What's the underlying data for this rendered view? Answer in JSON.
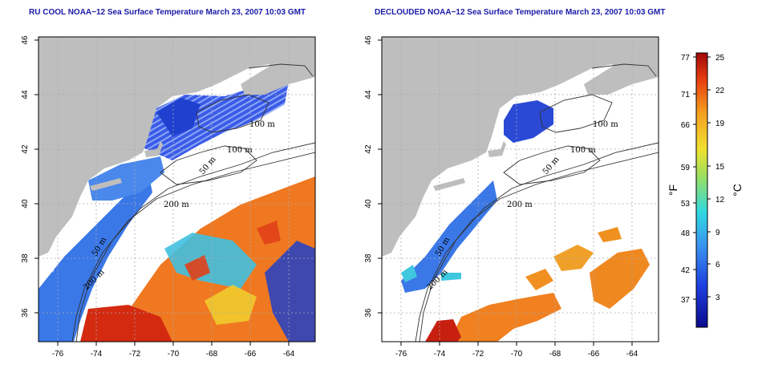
{
  "panels": [
    {
      "title": "RU COOL NOAA−12 Sea Surface Temperature March 23, 2007 10:03 GMT",
      "x_ticks": [
        "-76",
        "-74",
        "-72",
        "-70",
        "-68",
        "-66",
        "-64"
      ],
      "y_ticks": [
        "36",
        "38",
        "40",
        "42",
        "44",
        "46"
      ],
      "contour_labels": [
        "100 m",
        "100 m",
        "50 m",
        "200 m",
        "50 m",
        "200 m"
      ]
    },
    {
      "title": "DECLOUDED NOAA−12 Sea Surface Temperature March 23, 2007 10:03 GMT",
      "x_ticks": [
        "-76",
        "-74",
        "-72",
        "-70",
        "-68",
        "-66",
        "-64"
      ],
      "y_ticks": [
        "36",
        "38",
        "40",
        "42",
        "44",
        "46"
      ],
      "contour_labels": [
        "100 m",
        "100 m",
        "50 m",
        "200 m",
        "50 m",
        "200 m"
      ]
    }
  ],
  "colorbar": {
    "fahrenheit_label": "°F",
    "celsius_label": "°C",
    "fahrenheit_ticks": [
      "77",
      "71",
      "66",
      "59",
      "53",
      "48",
      "42",
      "37"
    ],
    "celsius_ticks": [
      "25",
      "22",
      "19",
      "15",
      "12",
      "9",
      "6",
      "3"
    ]
  },
  "colors": {
    "title": "#1a1aa8",
    "land": "#bebebe",
    "cold": "#1f3fd0",
    "warm": "#e8501a",
    "hot": "#c01010"
  }
}
